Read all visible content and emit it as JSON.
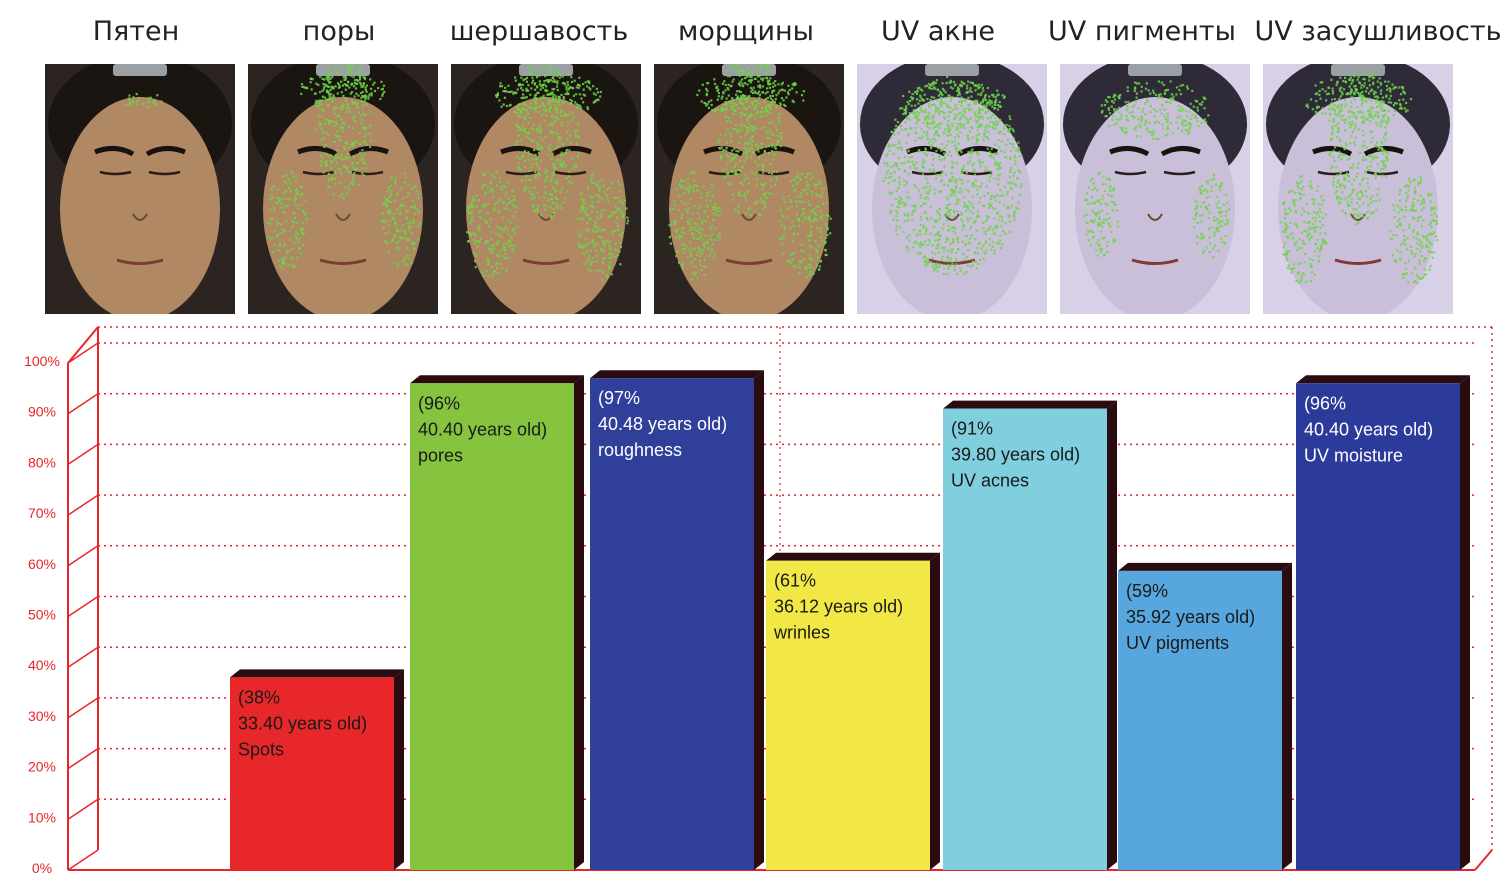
{
  "headers": [
    "Пятен",
    "поры",
    "шершавость",
    "морщины",
    "UV акне",
    "UV пигменты",
    "UV засушливость"
  ],
  "photos": [
    {
      "mode": "normal",
      "overlay": "spots",
      "label_ref": "Пятен"
    },
    {
      "mode": "normal",
      "overlay": "pores",
      "label_ref": "поры"
    },
    {
      "mode": "normal",
      "overlay": "roughness",
      "label_ref": "шершавость"
    },
    {
      "mode": "normal",
      "overlay": "wrinkles",
      "label_ref": "морщины"
    },
    {
      "mode": "uv",
      "overlay": "acne",
      "label_ref": "UV акне"
    },
    {
      "mode": "uv",
      "overlay": "pigments",
      "label_ref": "UV пигменты"
    },
    {
      "mode": "uv",
      "overlay": "moisture",
      "label_ref": "UV засушливость"
    }
  ],
  "colors": {
    "axis": "#e8252a",
    "grid": "#e8252a",
    "bar_side": "#2a0b10",
    "overlay": "#6fd34a",
    "skin_normal": "#b08863",
    "skin_uv": "#c9bfd8"
  },
  "chart_data": {
    "type": "bar",
    "yticks": [
      "0%",
      "10%",
      "20%",
      "30%",
      "40%",
      "50%",
      "60%",
      "70%",
      "80%",
      "90%",
      "100%"
    ],
    "ylim": [
      0,
      100
    ],
    "grid": true,
    "bars": [
      {
        "value": 38,
        "lines": [
          "(38%",
          "33.40 years old)",
          "Spots"
        ],
        "color": "#e8272a",
        "text_color": "#1a1a1a"
      },
      {
        "value": 96,
        "lines": [
          "(96%",
          "40.40 years old)",
          "pores"
        ],
        "color": "#86c440",
        "text_color": "#1a1a1a"
      },
      {
        "value": 97,
        "lines": [
          "(97%",
          "40.48 years old)",
          "roughness"
        ],
        "color": "#2f3f9a",
        "text_color": "#ffffff"
      },
      {
        "value": 61,
        "lines": [
          "(61%",
          "36.12 years old)",
          "wrinles"
        ],
        "color": "#f1e845",
        "text_color": "#1a1a1a"
      },
      {
        "value": 91,
        "lines": [
          "(91%",
          "39.80 years old)",
          "UV acnes"
        ],
        "color": "#7fcfdf",
        "text_color": "#1a1a1a"
      },
      {
        "value": 59,
        "lines": [
          "(59%",
          "35.92 years old)",
          "UV pigments"
        ],
        "color": "#57a7de",
        "text_color": "#1a1a1a"
      },
      {
        "value": 96,
        "lines": [
          "(96%",
          "40.40 years old)",
          "UV moisture"
        ],
        "color": "#2c3a99",
        "text_color": "#ffffff"
      }
    ]
  }
}
